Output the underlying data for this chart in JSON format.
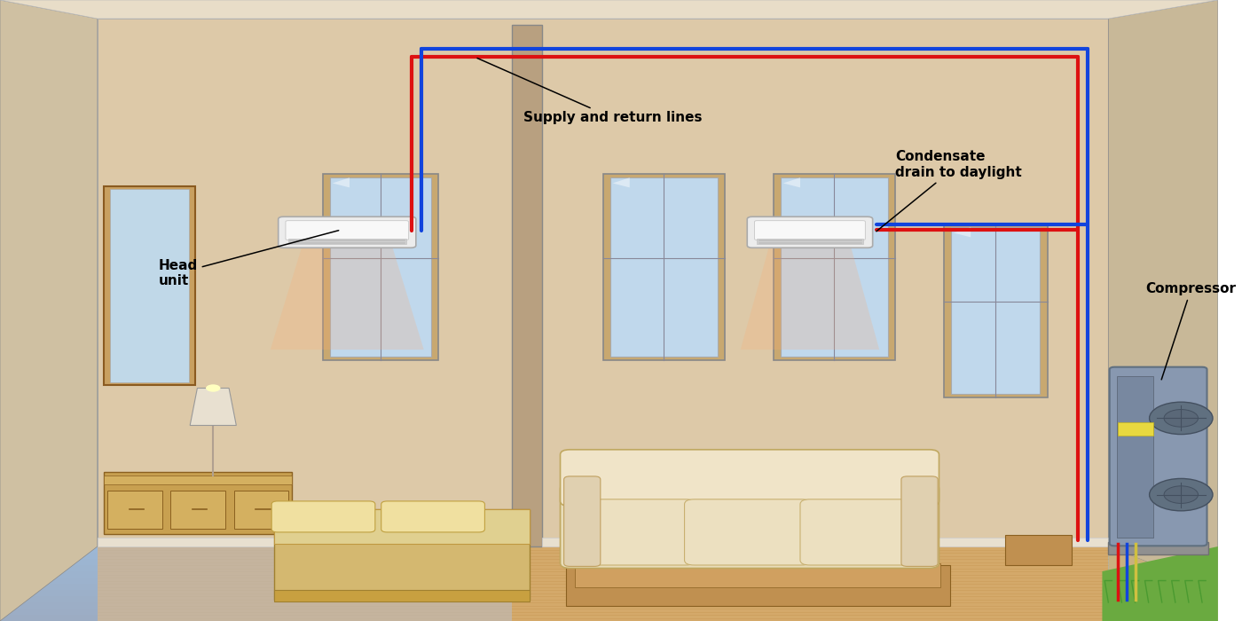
{
  "figsize": [
    14.0,
    7.0
  ],
  "dpi": 100,
  "labels": {
    "head_unit": {
      "text": "Head\nunit",
      "fontsize": 11,
      "fontweight": "bold"
    },
    "supply_return": {
      "text": "Supply and return lines",
      "fontsize": 11,
      "fontweight": "bold"
    },
    "condensate": {
      "text": "Condensate\ndrain to daylight",
      "fontsize": 11,
      "fontweight": "bold"
    },
    "compressor": {
      "text": "Compressor",
      "fontsize": 11,
      "fontweight": "bold"
    }
  },
  "line_red": "#dd1111",
  "line_blue": "#1144dd",
  "line_width": 3.0,
  "sky_color": "#a8d8f0",
  "back_wall_color": "#ddc9a8",
  "left_wall_color": "#cfc0a2",
  "right_wall_color": "#c8b898",
  "floor_wood_color": "#d4a96a",
  "floor_carpet_color": "#c0b8b0",
  "ceiling_color": "#e8ddc8",
  "grass_color": "#6aaa40",
  "compressor_color": "#8898b0",
  "dresser_color": "#c8a050",
  "sofa_color": "#e8dcb8",
  "bed_color": "#d4b870"
}
